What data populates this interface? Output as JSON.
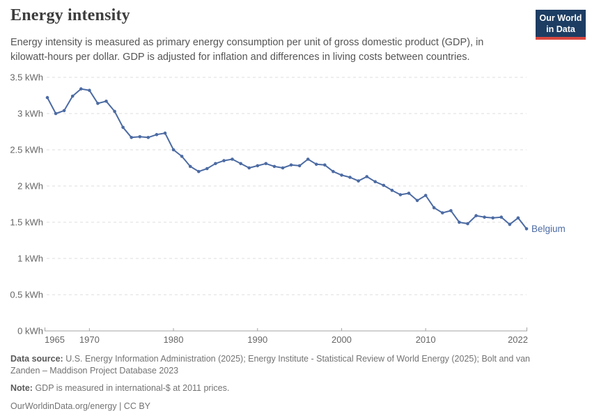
{
  "header": {
    "title": "Energy intensity",
    "subtitle_line1": "Energy intensity is measured as primary energy consumption per unit of gross domestic product (GDP), in",
    "subtitle_line2": "kilowatt-hours per dollar. GDP is adjusted for inflation and differences in living costs between countries.",
    "logo_line1": "Our World",
    "logo_line2": "in Data"
  },
  "chart_data": {
    "type": "line",
    "title": "Energy intensity",
    "xlabel": "",
    "ylabel": "",
    "y_unit": "kWh",
    "xlim": [
      1965,
      2022
    ],
    "ylim": [
      0,
      3.5
    ],
    "grid": "dashed-horizontal",
    "legend": "end-of-line-label",
    "x_ticks": [
      {
        "v": 1965,
        "label": "1965"
      },
      {
        "v": 1970,
        "label": "1970"
      },
      {
        "v": 1980,
        "label": "1980"
      },
      {
        "v": 1990,
        "label": "1990"
      },
      {
        "v": 2000,
        "label": "2000"
      },
      {
        "v": 2010,
        "label": "2010"
      },
      {
        "v": 2022,
        "label": "2022"
      }
    ],
    "y_ticks": [
      {
        "v": 0,
        "label": "0 kWh"
      },
      {
        "v": 0.5,
        "label": "0.5 kWh"
      },
      {
        "v": 1,
        "label": "1 kWh"
      },
      {
        "v": 1.5,
        "label": "1.5 kWh"
      },
      {
        "v": 2,
        "label": "2 kWh"
      },
      {
        "v": 2.5,
        "label": "2.5 kWh"
      },
      {
        "v": 3,
        "label": "3 kWh"
      },
      {
        "v": 3.5,
        "label": "3.5 kWh"
      }
    ],
    "series": [
      {
        "name": "Belgium",
        "x": [
          1965,
          1966,
          1967,
          1968,
          1969,
          1970,
          1971,
          1972,
          1973,
          1974,
          1975,
          1976,
          1977,
          1978,
          1979,
          1980,
          1981,
          1982,
          1983,
          1984,
          1985,
          1986,
          1987,
          1988,
          1989,
          1990,
          1991,
          1992,
          1993,
          1994,
          1995,
          1996,
          1997,
          1998,
          1999,
          2000,
          2001,
          2002,
          2003,
          2004,
          2005,
          2006,
          2007,
          2008,
          2009,
          2010,
          2011,
          2012,
          2013,
          2014,
          2015,
          2016,
          2017,
          2018,
          2019,
          2020,
          2021,
          2022
        ],
        "values": [
          3.22,
          3.0,
          3.04,
          3.24,
          3.34,
          3.32,
          3.14,
          3.17,
          3.03,
          2.81,
          2.67,
          2.68,
          2.67,
          2.71,
          2.73,
          2.5,
          2.41,
          2.27,
          2.2,
          2.24,
          2.31,
          2.35,
          2.37,
          2.31,
          2.25,
          2.28,
          2.31,
          2.27,
          2.25,
          2.29,
          2.28,
          2.37,
          2.3,
          2.29,
          2.2,
          2.15,
          2.12,
          2.07,
          2.13,
          2.06,
          2.01,
          1.94,
          1.88,
          1.9,
          1.8,
          1.87,
          1.7,
          1.63,
          1.66,
          1.5,
          1.48,
          1.59,
          1.57,
          1.56,
          1.57,
          1.47,
          1.56,
          1.41
        ]
      }
    ]
  },
  "footer": {
    "source_label": "Data source:",
    "source_line1": "U.S. Energy Information Administration (2025); Energy Institute - Statistical Review of World Energy (2025); Bolt and van",
    "source_line2": "Zanden – Maddison Project Database 2023",
    "note_label": "Note:",
    "note_text": "GDP is measured in international-$ at 2011 prices.",
    "license": "OurWorldinData.org/energy | CC BY"
  },
  "colors": {
    "line": "#4c6ba3",
    "grid": "#dedede",
    "axis": "#a3a3a3",
    "tick_text": "#666666",
    "title": "#3d3d3d",
    "subtitle": "#555555",
    "footer": "#737373",
    "logo_bg": "#1d3d63",
    "logo_accent": "#d8483f"
  }
}
